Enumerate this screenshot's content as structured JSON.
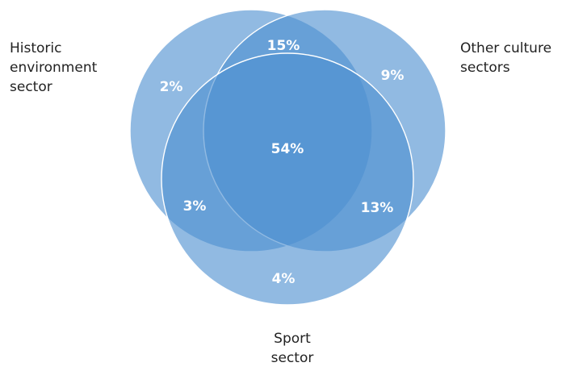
{
  "colors": {
    "circle_fill": "#4e8fd0",
    "circle_outline": "#ffffff",
    "value_text": "#ffffff",
    "label_text": "#222222"
  },
  "sets": {
    "historic": "Historic\nenvironment\nsector",
    "other": "Other culture\nsectors",
    "sport": "Sport\nsector"
  },
  "regions": {
    "historic_only": "2%",
    "historic_and_other": "15%",
    "other_only": "9%",
    "all_three": "54%",
    "historic_and_sport": "3%",
    "other_and_sport": "13%",
    "sport_only": "4%"
  }
}
